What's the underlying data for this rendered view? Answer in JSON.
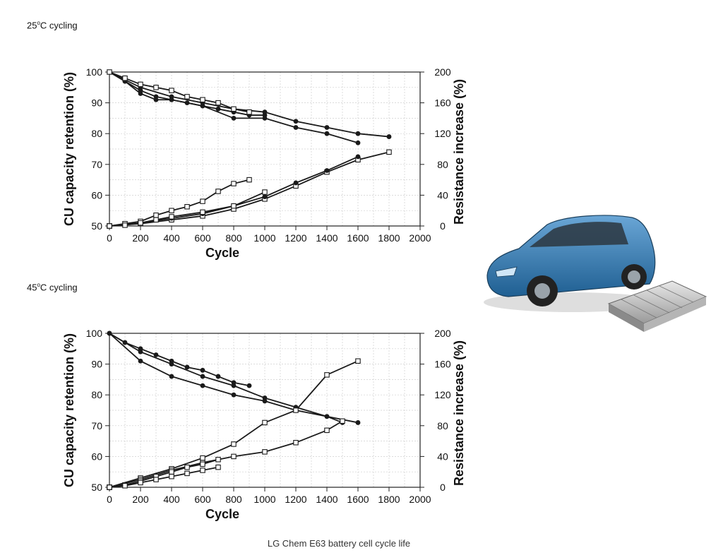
{
  "panels": [
    {
      "label_prefix": "25",
      "label_sup": "o",
      "label_suffix": "C cycling"
    },
    {
      "label_prefix": "45",
      "label_sup": "o",
      "label_suffix": "C cycling"
    }
  ],
  "caption": "LG Chem E63 battery cell cycle life",
  "chart_data": [
    {
      "type": "line",
      "title": "25°C cycling",
      "xlabel": "Cycle",
      "ylabel": "CU capacity retention (%)",
      "y2label": "Resistance increase (%)",
      "xlim": [
        0,
        2000
      ],
      "ylim": [
        50,
        100
      ],
      "y2lim": [
        0,
        200
      ],
      "xticks": [
        0,
        200,
        400,
        600,
        800,
        1000,
        1200,
        1400,
        1600,
        1800,
        2000
      ],
      "yticks": [
        50,
        60,
        70,
        80,
        90,
        100
      ],
      "y2ticks": [
        0,
        40,
        80,
        120,
        160,
        200
      ],
      "grid": true,
      "series": [
        {
          "axis": "left",
          "marker": "filled",
          "x": [
            0,
            100,
            200,
            300,
            400,
            500,
            600,
            700,
            800,
            900,
            1000
          ],
          "y": [
            100,
            97,
            94,
            92,
            91,
            90,
            89,
            88,
            87,
            86,
            86
          ]
        },
        {
          "axis": "left",
          "marker": "filled",
          "x": [
            0,
            200,
            400,
            600,
            800,
            1000,
            1200,
            1400,
            1600,
            1800
          ],
          "y": [
            100,
            95,
            92,
            90,
            88,
            87,
            84,
            82,
            80,
            79
          ]
        },
        {
          "axis": "left",
          "marker": "filled",
          "x": [
            0,
            100,
            200,
            300,
            400,
            600,
            800,
            1000,
            1200,
            1400,
            1600
          ],
          "y": [
            100,
            97,
            93,
            91,
            91,
            89,
            85,
            85,
            82,
            80,
            77
          ]
        },
        {
          "axis": "left",
          "marker": "open",
          "x": [
            0,
            100,
            200,
            300,
            400,
            500,
            600,
            700,
            800,
            900
          ],
          "y": [
            100,
            98,
            96,
            95,
            94,
            92,
            91,
            90,
            88,
            87
          ]
        },
        {
          "axis": "right",
          "marker": "open",
          "x": [
            0,
            200,
            400,
            600,
            800,
            1000,
            1200,
            1400,
            1600,
            1800
          ],
          "y": [
            0,
            3,
            8,
            13,
            22,
            35,
            52,
            70,
            86,
            96
          ]
        },
        {
          "axis": "right",
          "marker": "filled",
          "x": [
            0,
            200,
            400,
            600,
            800,
            1000,
            1200,
            1400,
            1600
          ],
          "y": [
            0,
            4,
            10,
            16,
            26,
            38,
            56,
            72,
            90
          ]
        },
        {
          "axis": "right",
          "marker": "open",
          "x": [
            0,
            100,
            200,
            300,
            400,
            500,
            600,
            700,
            800,
            900
          ],
          "y": [
            0,
            3,
            6,
            14,
            20,
            25,
            32,
            45,
            55,
            60
          ]
        },
        {
          "axis": "right",
          "marker": "open",
          "x": [
            0,
            100,
            200,
            300,
            400,
            600,
            800,
            1000
          ],
          "y": [
            0,
            1,
            4,
            8,
            12,
            18,
            26,
            44
          ]
        }
      ]
    },
    {
      "type": "line",
      "title": "45°C cycling",
      "xlabel": "Cycle",
      "ylabel": "CU capacity retention (%)",
      "y2label": "Resistance increase (%)",
      "xlim": [
        0,
        2000
      ],
      "ylim": [
        50,
        100
      ],
      "y2lim": [
        0,
        200
      ],
      "xticks": [
        0,
        200,
        400,
        600,
        800,
        1000,
        1200,
        1400,
        1600,
        1800,
        2000
      ],
      "yticks": [
        50,
        60,
        70,
        80,
        90,
        100
      ],
      "y2ticks": [
        0,
        40,
        80,
        120,
        160,
        200
      ],
      "grid": true,
      "series": [
        {
          "axis": "left",
          "marker": "filled",
          "x": [
            0,
            100,
            200,
            300,
            400,
            500,
            600,
            700,
            800,
            900
          ],
          "y": [
            100,
            97,
            95,
            93,
            91,
            89,
            88,
            86,
            84,
            83
          ]
        },
        {
          "axis": "left",
          "marker": "filled",
          "x": [
            0,
            200,
            400,
            600,
            800,
            1000,
            1200,
            1400,
            1600
          ],
          "y": [
            100,
            94,
            90,
            86,
            83,
            79,
            76,
            73,
            71
          ]
        },
        {
          "axis": "left",
          "marker": "filled",
          "x": [
            0,
            200,
            400,
            600,
            800,
            1000,
            1200,
            1400,
            1500
          ],
          "y": [
            100,
            91,
            86,
            83,
            80,
            78,
            75,
            73,
            71
          ]
        },
        {
          "axis": "right",
          "marker": "open",
          "x": [
            0,
            200,
            400,
            600,
            800,
            1000,
            1200,
            1400,
            1600
          ],
          "y": [
            0,
            12,
            24,
            38,
            56,
            84,
            100,
            146,
            164
          ]
        },
        {
          "axis": "right",
          "marker": "open",
          "x": [
            0,
            200,
            400,
            600,
            800,
            1000,
            1200,
            1400,
            1500
          ],
          "y": [
            0,
            10,
            22,
            32,
            40,
            46,
            58,
            74,
            86
          ]
        },
        {
          "axis": "right",
          "marker": "open",
          "x": [
            0,
            100,
            200,
            300,
            400,
            500,
            600,
            700
          ],
          "y": [
            0,
            3,
            8,
            14,
            20,
            26,
            30,
            36
          ]
        },
        {
          "axis": "right",
          "marker": "open",
          "x": [
            0,
            100,
            200,
            300,
            400,
            500,
            600,
            700
          ],
          "y": [
            0,
            2,
            6,
            10,
            14,
            18,
            22,
            26
          ]
        }
      ]
    }
  ]
}
